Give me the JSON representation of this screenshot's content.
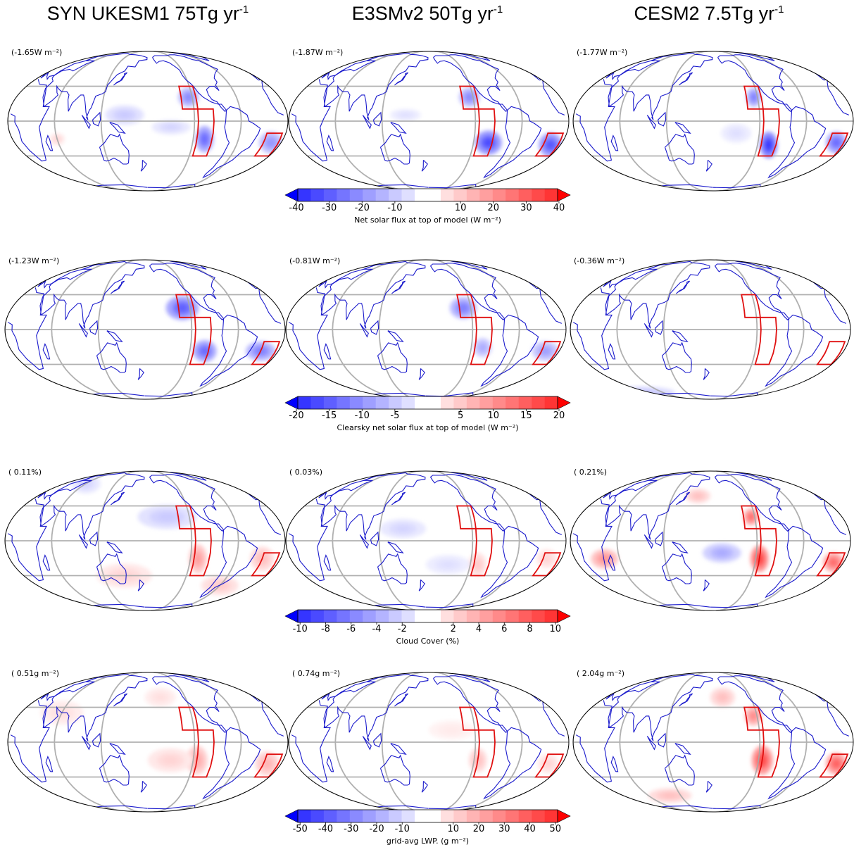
{
  "columns": [
    {
      "title": "SYN UKESM1 75Tg yr",
      "sup": "-1"
    },
    {
      "title": "E3SMv2 50Tg yr",
      "sup": "-1"
    },
    {
      "title": "CESM2 7.5Tg yr",
      "sup": "-1"
    }
  ],
  "rows": [
    {
      "means": [
        "(-1.65W m⁻²)",
        "(-1.87W m⁻²)",
        "(-1.77W m⁻²)"
      ],
      "colorbar": {
        "ticks": [
          "-40",
          "-30",
          "-20",
          "-10",
          "10",
          "20",
          "30",
          "40"
        ],
        "label": "Net solar flux at top of model (W m⁻²)"
      }
    },
    {
      "means": [
        "(-1.23W m⁻²)",
        "(-0.81W m⁻²)",
        "(-0.36W m⁻²)"
      ],
      "colorbar": {
        "ticks": [
          "-20",
          "-15",
          "-10",
          "-5",
          "5",
          "10",
          "15",
          "20"
        ],
        "label": "Clearsky net solar flux at top of model (W m⁻²)"
      }
    },
    {
      "means": [
        "( 0.11%)",
        "( 0.03%)",
        "( 0.21%)"
      ],
      "colorbar": {
        "ticks": [
          "-10",
          "-8",
          "-6",
          "-4",
          "-2",
          "2",
          "4",
          "6",
          "8",
          "10"
        ],
        "label": "Cloud Cover (%)"
      }
    },
    {
      "means": [
        "( 0.51g m⁻²)",
        "( 0.74g m⁻²)",
        "( 2.04g m⁻²)"
      ],
      "colorbar": {
        "ticks": [
          "-50",
          "-40",
          "-30",
          "-20",
          "-10",
          "10",
          "20",
          "30",
          "40",
          "50"
        ],
        "label": "grid-avg LWP. (g m⁻²)"
      }
    }
  ],
  "colors": {
    "coastline": "#1a1acc",
    "region_box": "#e01010",
    "graticule": "#a8a8a8",
    "negative": "#2a2aff",
    "positive": "#ff2a2a"
  }
}
